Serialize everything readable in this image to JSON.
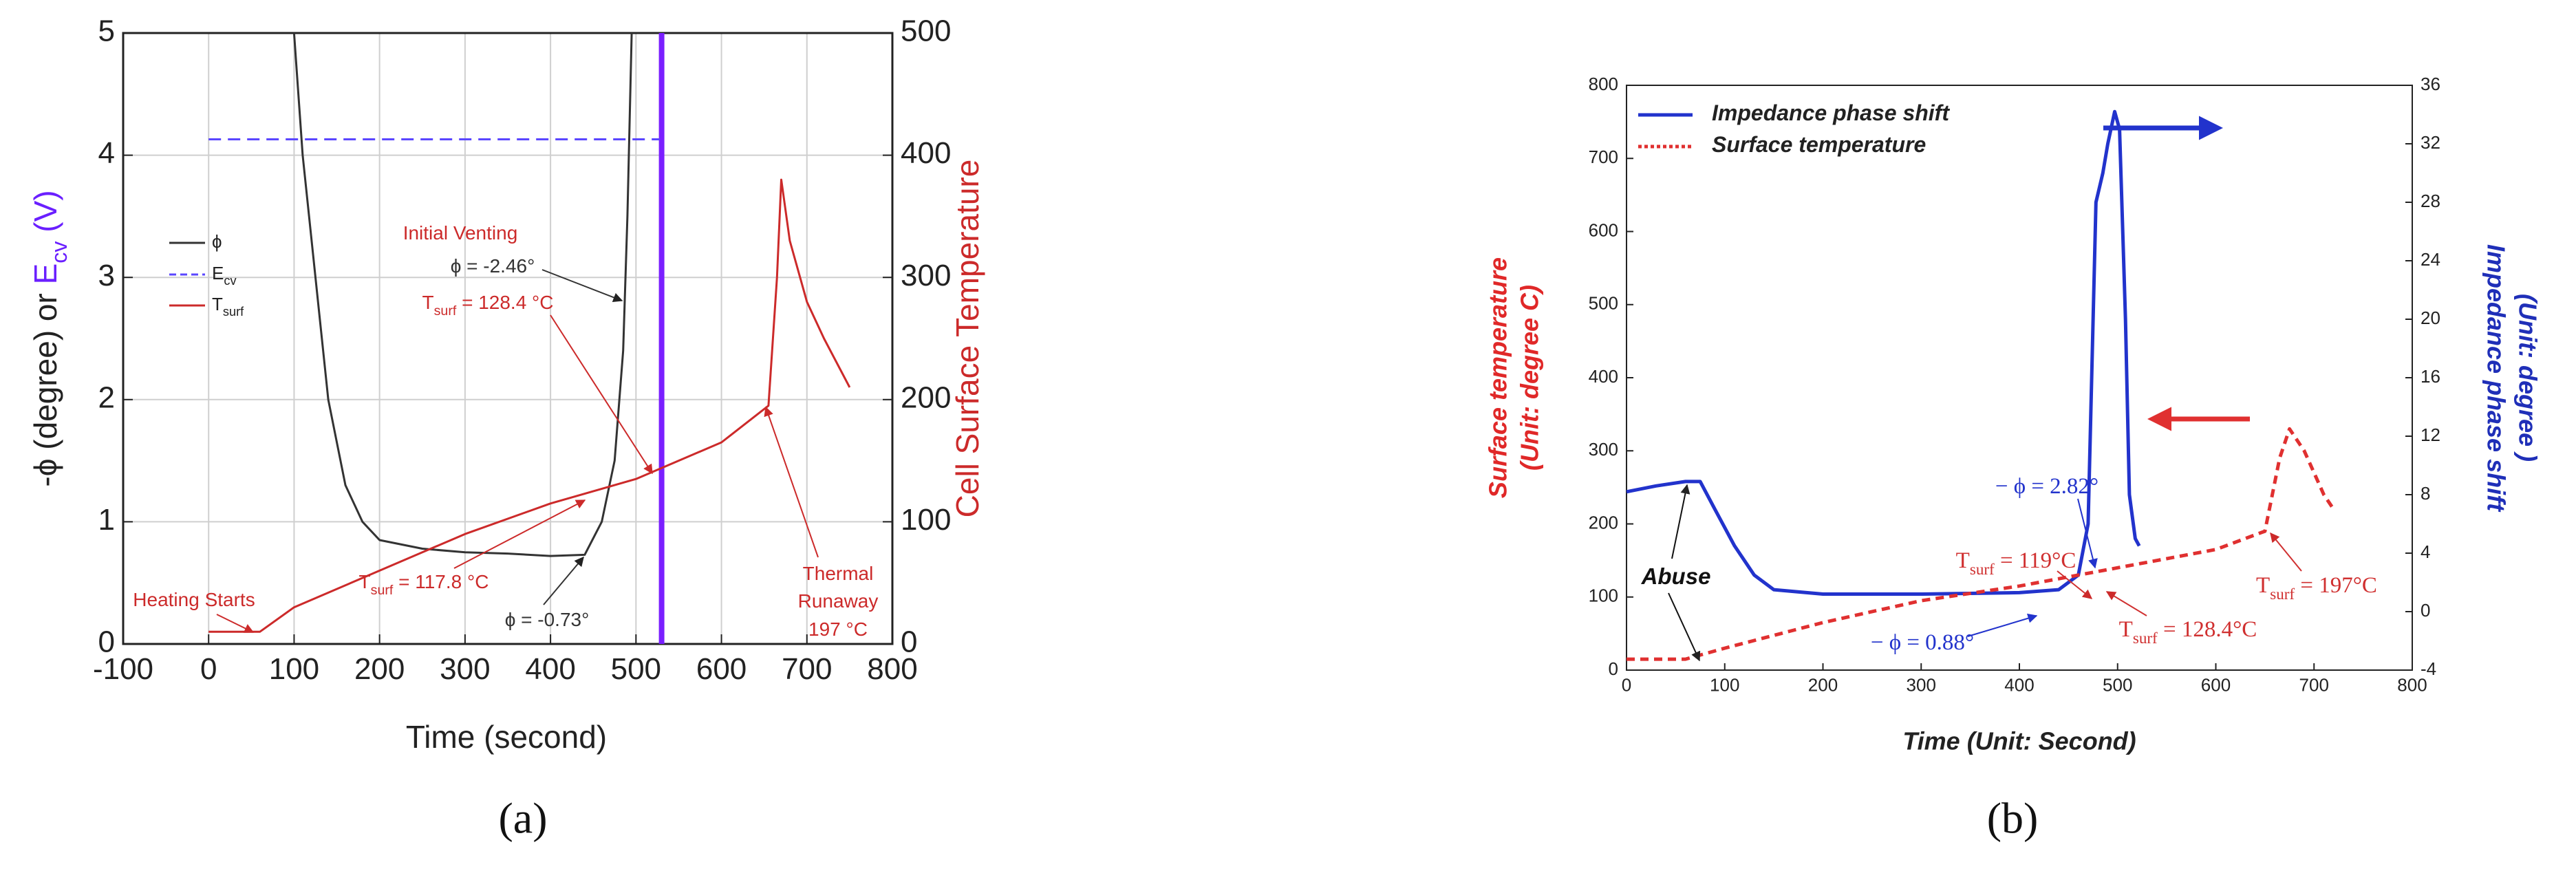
{
  "chart_data": [
    {
      "type": "line",
      "caption": "(a)",
      "xlabel": "Time (second)",
      "ylabel": "-ϕ (degree) or ",
      "ylabel_highlight": "E",
      "ylabel_sub": "cv",
      "ylabel_tail": " (V)",
      "ylabel_highlight_color": "#6a1fff",
      "y2label": "Cell Surface Temperature",
      "y2label_color": "#cc2a2a",
      "xlim": [
        -100,
        800
      ],
      "xticks": [
        -100,
        0,
        100,
        200,
        300,
        400,
        500,
        600,
        700,
        800
      ],
      "ylim": [
        0,
        5
      ],
      "yticks": [
        0,
        1,
        2,
        3,
        4,
        5
      ],
      "y2lim": [
        0,
        500
      ],
      "y2ticks": [
        0,
        100,
        200,
        300,
        400,
        500
      ],
      "grid": true,
      "legend": "upper left",
      "series": [
        {
          "name": "ϕ",
          "color": "#333333",
          "linestyle": "solid",
          "x": [
            100,
            110,
            125,
            140,
            160,
            180,
            200,
            250,
            300,
            350,
            400,
            440,
            460,
            475,
            485,
            490,
            495
          ],
          "values": [
            5,
            4,
            3,
            2,
            1.3,
            1.0,
            0.85,
            0.78,
            0.75,
            0.74,
            0.72,
            0.73,
            1.0,
            1.5,
            2.4,
            3.5,
            5
          ]
        },
        {
          "name": "E",
          "name_sub": "cv",
          "color": "#5a46ff",
          "linestyle": "dashed",
          "x": [
            0,
            100,
            200,
            300,
            400,
            500,
            528
          ],
          "values": [
            4.13,
            4.13,
            4.13,
            4.13,
            4.13,
            4.13,
            4.13
          ]
        },
        {
          "name": "T",
          "name_sub": "surf",
          "color": "#cc2a2a",
          "linestyle": "solid",
          "axis": "y2",
          "x": [
            0,
            60,
            100,
            200,
            300,
            400,
            500,
            600,
            655,
            665,
            670,
            680,
            700,
            720,
            750
          ],
          "values": [
            10,
            10,
            30,
            60,
            90,
            115,
            135,
            165,
            195,
            300,
            380,
            330,
            280,
            250,
            210
          ]
        }
      ],
      "vlines": [
        {
          "x": 530,
          "color": "#7a1fff"
        }
      ],
      "annotations": [
        {
          "text": "Heating Starts",
          "color": "#cc2a2a"
        },
        {
          "text": "Initial Venting",
          "color": "#cc2a2a"
        },
        {
          "text": "ϕ = -2.46°",
          "color": "#333333"
        },
        {
          "text": "T",
          "sub": "surf",
          "rest": " = 128.4 °C",
          "color": "#cc2a2a"
        },
        {
          "text": "Thermal",
          "color": "#cc2a2a"
        },
        {
          "text": "Runaway",
          "color": "#cc2a2a"
        },
        {
          "text": "197 °C",
          "color": "#cc2a2a"
        },
        {
          "text": "T",
          "sub": "surf",
          "rest": " = 117.8 °C",
          "color": "#cc2a2a"
        },
        {
          "text": "ϕ = -0.73°",
          "color": "#333333"
        }
      ]
    },
    {
      "type": "line",
      "caption": "(b)",
      "xlabel": "Time (Unit: Second)",
      "ylabel": [
        "Surface temperature",
        "(Unit: degree C)"
      ],
      "ylabel_color": "#e02828",
      "y2label": [
        "Impedance phase shift",
        "(Unit: degree )"
      ],
      "y2label_color": "#1f2fb8",
      "xlim": [
        0,
        800
      ],
      "xticks": [
        0,
        100,
        200,
        300,
        400,
        500,
        600,
        700,
        800
      ],
      "ylim": [
        0,
        800
      ],
      "yticks": [
        0,
        100,
        200,
        300,
        400,
        500,
        600,
        700,
        800
      ],
      "y2lim": [
        -4,
        36
      ],
      "y2ticks": [
        -4,
        0,
        4,
        8,
        12,
        16,
        20,
        24,
        28,
        32,
        36
      ],
      "grid": false,
      "legend": "upper left",
      "series": [
        {
          "name": "Impedance phase shift",
          "color": "#2233cc",
          "linestyle": "solid",
          "axis": "y2",
          "x": [
            0,
            30,
            60,
            75,
            90,
            110,
            130,
            150,
            200,
            300,
            400,
            440,
            460,
            470,
            478,
            485,
            490,
            497,
            502,
            508,
            512,
            518,
            522
          ],
          "values": [
            8.2,
            8.6,
            8.9,
            8.9,
            7,
            4.5,
            2.5,
            1.5,
            1.2,
            1.2,
            1.3,
            1.5,
            2.5,
            6,
            28,
            30,
            32,
            34.2,
            33,
            20,
            8,
            5,
            4.5
          ]
        },
        {
          "name": "Surface temperature",
          "color": "#e03030",
          "linestyle": "dotted",
          "x": [
            0,
            60,
            100,
            200,
            300,
            400,
            480,
            600,
            650,
            665,
            675,
            690,
            710,
            720
          ],
          "values": [
            15,
            15,
            30,
            65,
            95,
            115,
            135,
            165,
            190,
            290,
            330,
            300,
            240,
            220
          ]
        }
      ],
      "annotations": [
        {
          "text": "Abuse",
          "color": "#111111"
        },
        {
          "text": "− ϕ = 2.82°",
          "color": "#2233cc"
        },
        {
          "text": "T",
          "sub": "surf",
          "rest": " = 119°C",
          "color": "#d03030"
        },
        {
          "text": "T",
          "sub": "surf",
          "rest": " = 197°C",
          "color": "#d03030"
        },
        {
          "text": "T",
          "sub": "surf",
          "rest": " = 128.4°C",
          "color": "#d03030"
        },
        {
          "text": "− ϕ = 0.88°",
          "color": "#2233cc"
        }
      ]
    }
  ]
}
